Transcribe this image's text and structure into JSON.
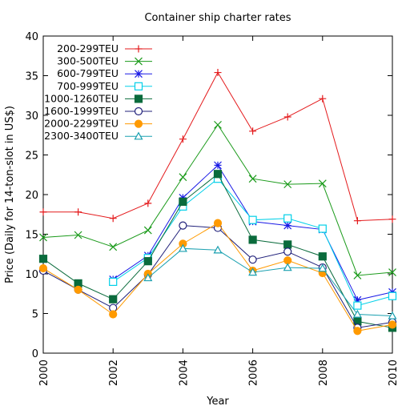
{
  "chart_data": {
    "type": "line",
    "title": "Container ship charter rates",
    "xlabel": "Year",
    "ylabel": "Price (Daily for 14-ton-slot in US$)",
    "xlim": [
      2000,
      2010
    ],
    "ylim": [
      0,
      40
    ],
    "x_ticks": [
      2000,
      2002,
      2004,
      2006,
      2008,
      2010
    ],
    "y_ticks": [
      0,
      5,
      10,
      15,
      20,
      25,
      30,
      35,
      40
    ],
    "grid": false,
    "legend_position": "top-left",
    "x": [
      2000,
      2001,
      2002,
      2003,
      2004,
      2005,
      2006,
      2007,
      2008,
      2009,
      2010
    ],
    "series": [
      {
        "name": "200-299TEU",
        "color": "#e41a1c",
        "marker": "plus",
        "values": [
          17.8,
          17.8,
          17.0,
          18.9,
          27.0,
          35.4,
          28.0,
          29.8,
          32.1,
          16.7,
          16.9
        ]
      },
      {
        "name": "300-500TEU",
        "color": "#1a9a1a",
        "marker": "cross",
        "values": [
          14.6,
          14.9,
          13.4,
          15.5,
          22.2,
          28.8,
          22.0,
          21.3,
          21.4,
          9.8,
          10.2
        ]
      },
      {
        "name": "600-799TEU",
        "color": "#1a1ae6",
        "marker": "star",
        "values": [
          null,
          null,
          9.3,
          12.3,
          19.6,
          23.7,
          16.6,
          16.1,
          15.6,
          6.7,
          7.7
        ]
      },
      {
        "name": "700-999TEU",
        "color": "#00d0e8",
        "marker": "open-square",
        "values": [
          null,
          null,
          9.0,
          12.0,
          18.5,
          22.0,
          16.8,
          17.0,
          15.7,
          6.0,
          7.2
        ]
      },
      {
        "name": "1000-1260TEU",
        "color": "#0a6b3c",
        "marker": "filled-square",
        "values": [
          11.9,
          8.8,
          6.8,
          11.6,
          19.1,
          22.6,
          14.3,
          13.7,
          12.2,
          4.0,
          3.2
        ]
      },
      {
        "name": "1600-1999TEU",
        "color": "#20207a",
        "marker": "open-circle",
        "values": [
          10.4,
          8.0,
          5.7,
          9.9,
          16.1,
          15.8,
          11.8,
          12.8,
          10.8,
          3.2,
          3.9
        ]
      },
      {
        "name": "2000-2299TEU",
        "color": "#ff9a00",
        "marker": "filled-circle",
        "values": [
          10.7,
          8.0,
          4.9,
          10.0,
          13.8,
          16.4,
          10.4,
          11.7,
          10.1,
          2.8,
          3.6
        ]
      },
      {
        "name": "2300-3400TEU",
        "color": "#1aa0b0",
        "marker": "open-triangle",
        "values": [
          null,
          null,
          null,
          9.5,
          13.2,
          13.0,
          10.2,
          10.8,
          10.7,
          4.9,
          4.7
        ]
      }
    ]
  }
}
